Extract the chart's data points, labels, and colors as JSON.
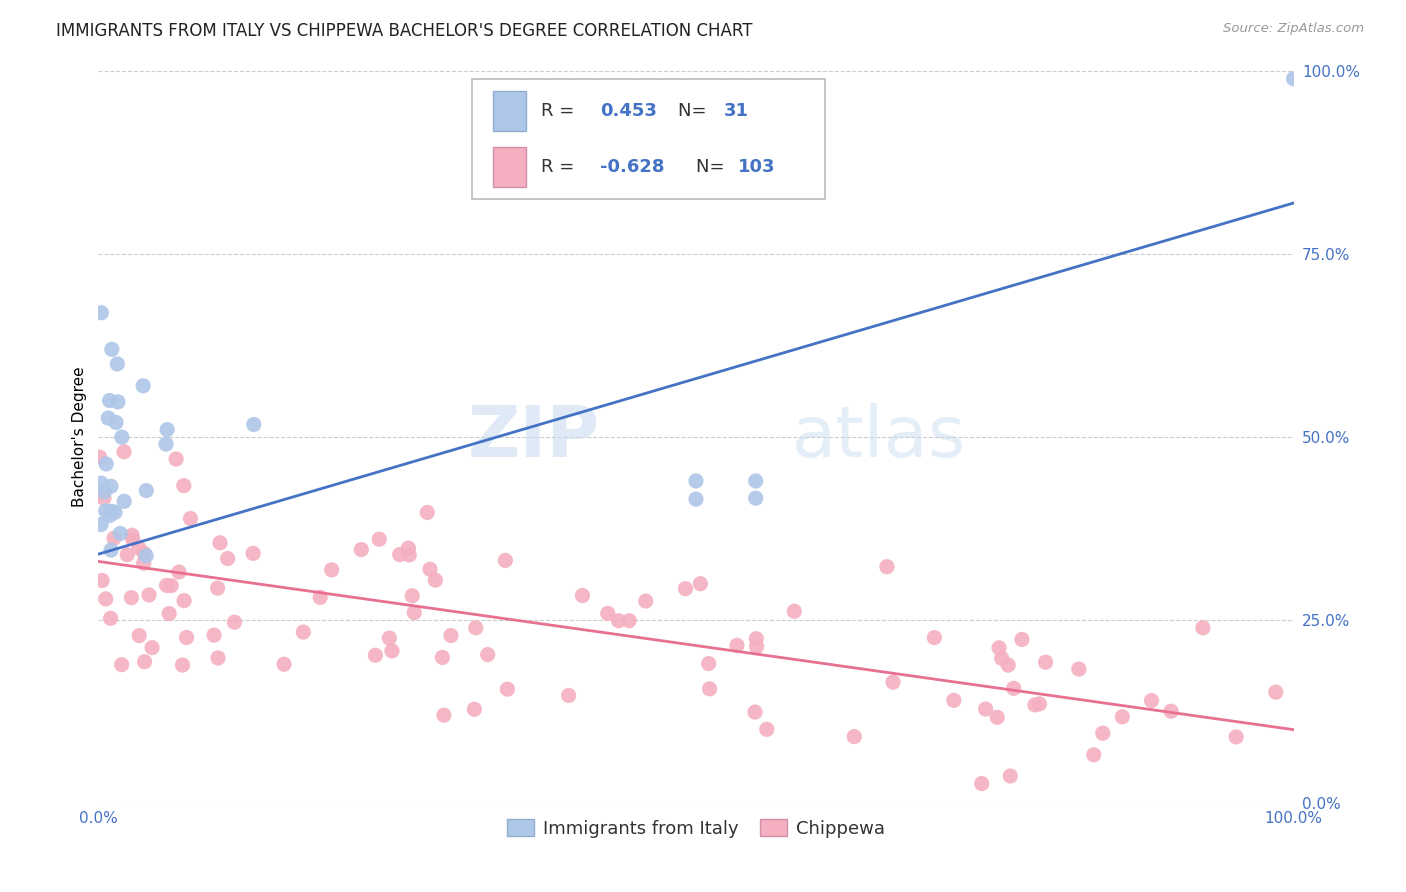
{
  "title": "IMMIGRANTS FROM ITALY VS CHIPPEWA BACHELOR'S DEGREE CORRELATION CHART",
  "source_text": "Source: ZipAtlas.com",
  "watermark_zip": "ZIP",
  "watermark_atlas": "atlas",
  "ylabel": "Bachelor's Degree",
  "legend_labels": [
    "Immigrants from Italy",
    "Chippewa"
  ],
  "r_italy": 0.453,
  "n_italy": 31,
  "r_chippewa": -0.628,
  "n_chippewa": 103,
  "italy_color": "#aec6e8",
  "chippewa_color": "#f4afc0",
  "italy_line_color": "#4472c4",
  "chippewa_line_color": "#e87090",
  "background_color": "#ffffff",
  "grid_color": "#cccccc",
  "italy_line_y0": 0.34,
  "italy_line_y1": 0.82,
  "chippewa_line_y0": 0.33,
  "chippewa_line_y1": 0.1,
  "ytick_labels": [
    "0.0%",
    "25.0%",
    "50.0%",
    "75.0%",
    "100.0%"
  ],
  "ytick_values": [
    0.0,
    0.25,
    0.5,
    0.75,
    1.0
  ],
  "xlim": [
    0.0,
    1.0
  ],
  "ylim": [
    0.0,
    1.0
  ],
  "title_fontsize": 12,
  "axis_label_fontsize": 11,
  "tick_fontsize": 11,
  "legend_fontsize": 13
}
